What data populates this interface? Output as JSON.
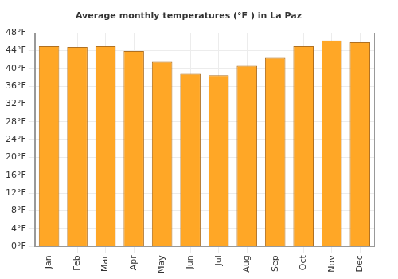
{
  "chart_data": {
    "type": "bar",
    "title": "Average monthly temperatures (°F ) in La Paz",
    "categories": [
      "Jan",
      "Feb",
      "Mar",
      "Apr",
      "May",
      "Jun",
      "Jul",
      "Aug",
      "Sep",
      "Oct",
      "Nov",
      "Dec"
    ],
    "values": [
      45,
      44.8,
      45,
      43.9,
      41.5,
      38.8,
      38.5,
      40.6,
      42.4,
      45,
      46.3,
      45.9
    ],
    "color": "#ffa726",
    "ylim": [
      0,
      48
    ],
    "yticks": [
      {
        "value": 0,
        "label": "0°F"
      },
      {
        "value": 4,
        "label": "4°F"
      },
      {
        "value": 8,
        "label": "8°F"
      },
      {
        "value": 12,
        "label": "12°F"
      },
      {
        "value": 16,
        "label": "16°F"
      },
      {
        "value": 20,
        "label": "20°F"
      },
      {
        "value": 24,
        "label": "24°F"
      },
      {
        "value": 28,
        "label": "28°F"
      },
      {
        "value": 32,
        "label": "32°F"
      },
      {
        "value": 36,
        "label": "36°F"
      },
      {
        "value": 40,
        "label": "40°F"
      },
      {
        "value": 44,
        "label": "44°F"
      },
      {
        "value": 48,
        "label": "48°F"
      }
    ],
    "grid": true
  }
}
